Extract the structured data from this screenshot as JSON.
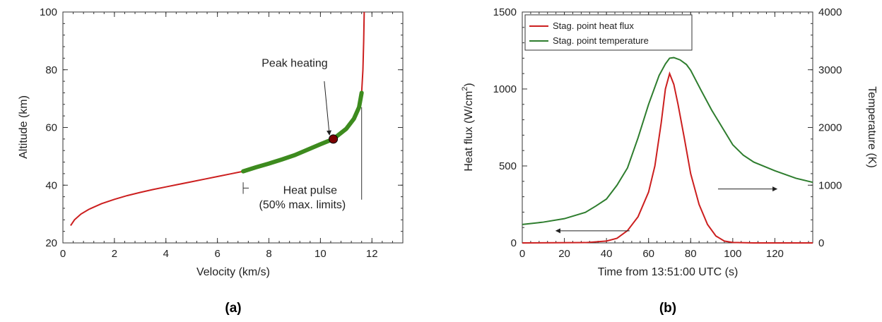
{
  "chart_data": [
    {
      "type": "line",
      "panel_label": "(a)",
      "xlabel": "Velocity (km/s)",
      "ylabel": "Altitude (km)",
      "xlim": [
        0,
        13.2
      ],
      "ylim": [
        20,
        100
      ],
      "x_ticks": [
        "0",
        "2",
        "4",
        "6",
        "8",
        "10",
        "12"
      ],
      "y_ticks": [
        "20",
        "40",
        "60",
        "80",
        "100"
      ],
      "grid": false,
      "colors": {
        "trajectory": "#cc1f1f",
        "heat_pulse": "#3d8b1e",
        "marker": "#7a0000"
      },
      "series": [
        {
          "x": [
            0.3,
            0.45,
            0.7,
            1.0,
            1.5,
            2.0,
            2.5,
            3.0,
            3.5,
            4.0,
            4.5,
            5.0,
            5.5,
            6.0,
            6.5,
            7.0,
            7.5,
            8.0,
            8.5,
            9.0,
            9.5,
            10.0,
            10.5,
            11.0,
            11.3,
            11.5,
            11.6,
            11.65,
            11.68,
            11.7
          ],
          "y": [
            26.0,
            28.0,
            30.0,
            31.6,
            33.6,
            35.1,
            36.4,
            37.5,
            38.5,
            39.4,
            40.3,
            41.2,
            42.1,
            43.0,
            43.9,
            44.8,
            46.2,
            47.5,
            48.9,
            50.4,
            52.3,
            54.2,
            56.0,
            59.5,
            63.0,
            67.0,
            72.0,
            80.0,
            90.0,
            100.0
          ]
        },
        {
          "x": [
            7.0,
            7.5,
            8.0,
            8.5,
            9.0,
            9.5,
            10.0,
            10.5,
            11.0,
            11.3,
            11.5,
            11.6
          ],
          "y": [
            44.8,
            46.2,
            47.5,
            48.9,
            50.4,
            52.3,
            54.2,
            56.0,
            59.5,
            63.0,
            67.0,
            72.0
          ]
        }
      ],
      "marker": {
        "x": 10.5,
        "y": 56.0
      },
      "heat_pulse_bounds": {
        "lower": {
          "x": 7.0,
          "y1": 37.0,
          "y2": 41.0
        },
        "upper": {
          "x": 11.6,
          "y1": 35.0,
          "y2": 67.0
        }
      },
      "annotations": {
        "peak": {
          "text": "Peak heating",
          "x": 9.0,
          "y": 81.0,
          "arrow_from": [
            10.15,
            76.0
          ],
          "arrow_to": [
            10.35,
            57.4
          ]
        },
        "pulse_line1": {
          "text": "Heat pulse",
          "x": 9.6,
          "y": 37.0
        },
        "pulse_line2": {
          "text": "(50% max. limits)",
          "x": 9.3,
          "y": 32.0
        }
      }
    },
    {
      "type": "line",
      "panel_label": "(b)",
      "xlabel": "Time from 13:51:00 UTC (s)",
      "ylabel": "Heat flux (W/cm",
      "ylabel_superscript": "2",
      "ylabel_close": ")",
      "y2label": "Temperature (K)",
      "xlim": [
        0,
        138
      ],
      "ylim": [
        0,
        1500
      ],
      "y2lim": [
        0,
        4000
      ],
      "x_ticks": [
        "0",
        "20",
        "40",
        "60",
        "80",
        "100",
        "120"
      ],
      "y_ticks": [
        "0",
        "500",
        "1000",
        "1500"
      ],
      "y2_ticks": [
        "0",
        "1000",
        "2000",
        "3000",
        "4000"
      ],
      "grid": false,
      "legend_position": "top-left",
      "colors": {
        "heat_flux": "#cc1f1f",
        "temperature": "#2e7d2e"
      },
      "series": [
        {
          "name": "Stag. point heat flux",
          "axis": "left",
          "x": [
            0,
            30,
            40,
            45,
            50,
            55,
            60,
            63,
            66,
            68,
            70,
            72,
            74,
            77,
            80,
            84,
            88,
            92,
            96,
            100,
            110,
            138
          ],
          "y": [
            0,
            2,
            12,
            30,
            80,
            170,
            330,
            500,
            780,
            1000,
            1100,
            1030,
            900,
            680,
            450,
            250,
            120,
            45,
            12,
            3,
            0,
            0
          ]
        },
        {
          "name": "Stag. point temperature",
          "axis": "right",
          "x": [
            0,
            10,
            20,
            30,
            35,
            40,
            45,
            50,
            55,
            60,
            65,
            68,
            70,
            72,
            75,
            78,
            80,
            85,
            90,
            95,
            100,
            105,
            110,
            120,
            130,
            138
          ],
          "y": [
            320,
            360,
            420,
            530,
            640,
            760,
            1000,
            1300,
            1820,
            2400,
            2900,
            3100,
            3200,
            3210,
            3170,
            3090,
            2990,
            2640,
            2300,
            2000,
            1700,
            1520,
            1400,
            1250,
            1120,
            1050
          ]
        }
      ],
      "annotations": {
        "left_arrow": {
          "from": [
            51,
            210
          ],
          "to": [
            16,
            210
          ]
        },
        "right_arrow": {
          "from": [
            93,
            935
          ],
          "to": [
            121,
            935
          ]
        }
      }
    }
  ]
}
